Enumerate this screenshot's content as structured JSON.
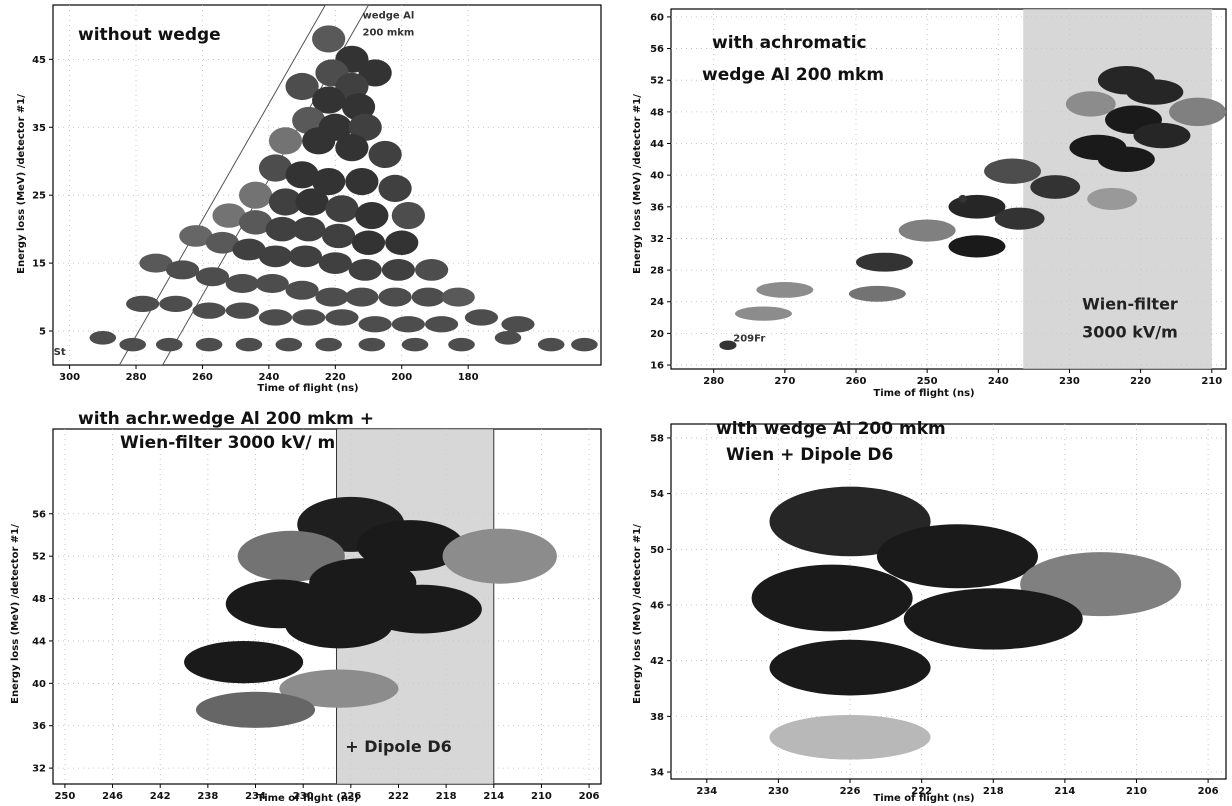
{
  "chart_data": [
    {
      "type": "scatter",
      "title": "without wedge",
      "xlabel": "Time of flight (ns)",
      "ylabel": "Energy loss (MeV) /detector #1/",
      "xlim": [
        305,
        140
      ],
      "ylim": [
        0,
        53
      ],
      "xticks": [
        "300",
        "280",
        "260",
        "240",
        "220",
        "200",
        "180"
      ],
      "xtick_values": [
        300,
        280,
        260,
        240,
        220,
        200,
        180
      ],
      "yticks": [
        "5",
        "15",
        "25",
        "35",
        "45"
      ],
      "ytick_values": [
        5,
        15,
        25,
        35,
        45
      ],
      "annotations": [
        {
          "text": "wedge Al",
          "x": 204,
          "y": 51
        },
        {
          "text": "200 mkm",
          "x": 204,
          "y": 48.5
        },
        {
          "text": "St",
          "x": 303,
          "y": 1.5
        }
      ],
      "band": {
        "type": "diagonal",
        "from": [
          285,
          0
        ],
        "to": [
          223,
          53
        ],
        "width_ns": 13
      },
      "points": [
        [
          222,
          48,
          5,
          2,
          0.35
        ],
        [
          215,
          45,
          5,
          2,
          0.2
        ],
        [
          208,
          43,
          5,
          2,
          0.2
        ],
        [
          221,
          43,
          5,
          2,
          0.3
        ],
        [
          215,
          41,
          5,
          2,
          0.25
        ],
        [
          230,
          41,
          5,
          2,
          0.3
        ],
        [
          222,
          39,
          5,
          2,
          0.2
        ],
        [
          213,
          38,
          5,
          2,
          0.2
        ],
        [
          228,
          36,
          5,
          2,
          0.35
        ],
        [
          220,
          35,
          5,
          2,
          0.2
        ],
        [
          211,
          35,
          5,
          2,
          0.25
        ],
        [
          235,
          33,
          5,
          2,
          0.45
        ],
        [
          225,
          33,
          5,
          2,
          0.2
        ],
        [
          215,
          32,
          5,
          2,
          0.2
        ],
        [
          205,
          31,
          5,
          2,
          0.25
        ],
        [
          238,
          29,
          5,
          2,
          0.3
        ],
        [
          230,
          28,
          5,
          2,
          0.2
        ],
        [
          222,
          27,
          5,
          2,
          0.2
        ],
        [
          212,
          27,
          5,
          2,
          0.2
        ],
        [
          202,
          26,
          5,
          2,
          0.25
        ],
        [
          244,
          25,
          5,
          2,
          0.45
        ],
        [
          235,
          24,
          5,
          2,
          0.25
        ],
        [
          227,
          24,
          5,
          2,
          0.2
        ],
        [
          218,
          23,
          5,
          2,
          0.25
        ],
        [
          209,
          22,
          5,
          2,
          0.2
        ],
        [
          198,
          22,
          5,
          2,
          0.3
        ],
        [
          252,
          22,
          5,
          1.8,
          0.45
        ],
        [
          244,
          21,
          5,
          1.8,
          0.35
        ],
        [
          236,
          20,
          5,
          1.8,
          0.25
        ],
        [
          228,
          20,
          5,
          1.8,
          0.25
        ],
        [
          219,
          19,
          5,
          1.8,
          0.25
        ],
        [
          210,
          18,
          5,
          1.8,
          0.2
        ],
        [
          200,
          18,
          5,
          1.8,
          0.2
        ],
        [
          262,
          19,
          5,
          1.6,
          0.4
        ],
        [
          254,
          18,
          5,
          1.6,
          0.35
        ],
        [
          246,
          17,
          5,
          1.6,
          0.25
        ],
        [
          238,
          16,
          5,
          1.6,
          0.25
        ],
        [
          229,
          16,
          5,
          1.6,
          0.25
        ],
        [
          220,
          15,
          5,
          1.6,
          0.25
        ],
        [
          211,
          14,
          5,
          1.6,
          0.25
        ],
        [
          201,
          14,
          5,
          1.6,
          0.25
        ],
        [
          191,
          14,
          5,
          1.6,
          0.3
        ],
        [
          274,
          15,
          5,
          1.4,
          0.35
        ],
        [
          266,
          14,
          5,
          1.4,
          0.3
        ],
        [
          257,
          13,
          5,
          1.4,
          0.3
        ],
        [
          248,
          12,
          5,
          1.4,
          0.3
        ],
        [
          239,
          12,
          5,
          1.4,
          0.3
        ],
        [
          230,
          11,
          5,
          1.4,
          0.3
        ],
        [
          221,
          10,
          5,
          1.4,
          0.3
        ],
        [
          212,
          10,
          5,
          1.4,
          0.3
        ],
        [
          202,
          10,
          5,
          1.4,
          0.3
        ],
        [
          192,
          10,
          5,
          1.4,
          0.3
        ],
        [
          183,
          10,
          5,
          1.4,
          0.35
        ],
        [
          278,
          9,
          5,
          1.2,
          0.3
        ],
        [
          268,
          9,
          5,
          1.2,
          0.3
        ],
        [
          258,
          8,
          5,
          1.2,
          0.3
        ],
        [
          248,
          8,
          5,
          1.2,
          0.3
        ],
        [
          238,
          7,
          5,
          1.2,
          0.3
        ],
        [
          228,
          7,
          5,
          1.2,
          0.3
        ],
        [
          218,
          7,
          5,
          1.2,
          0.3
        ],
        [
          208,
          6,
          5,
          1.2,
          0.3
        ],
        [
          198,
          6,
          5,
          1.2,
          0.3
        ],
        [
          188,
          6,
          5,
          1.2,
          0.3
        ],
        [
          176,
          7,
          5,
          1.2,
          0.3
        ],
        [
          165,
          6,
          5,
          1.2,
          0.3
        ],
        [
          290,
          4,
          4,
          1.0,
          0.3
        ],
        [
          281,
          3,
          4,
          1.0,
          0.3
        ],
        [
          270,
          3,
          4,
          1.0,
          0.3
        ],
        [
          258,
          3,
          4,
          1.0,
          0.3
        ],
        [
          246,
          3,
          4,
          1.0,
          0.3
        ],
        [
          234,
          3,
          4,
          1.0,
          0.3
        ],
        [
          222,
          3,
          4,
          1.0,
          0.3
        ],
        [
          209,
          3,
          4,
          1.0,
          0.3
        ],
        [
          196,
          3,
          4,
          1.0,
          0.3
        ],
        [
          182,
          3,
          4,
          1.0,
          0.3
        ],
        [
          168,
          4,
          4,
          1.0,
          0.3
        ],
        [
          155,
          3,
          4,
          1.0,
          0.3
        ],
        [
          145,
          3,
          4,
          1.0,
          0.3
        ]
      ]
    },
    {
      "type": "scatter",
      "title": "with achromatic",
      "subtitle": "wedge Al 200 mkm",
      "xlabel": "Time of flight (ns)",
      "ylabel": "Energy loss (MeV) /detector #1/",
      "xlim": [
        286,
        208
      ],
      "ylim": [
        15.5,
        61
      ],
      "xticks": [
        "280",
        "270",
        "260",
        "250",
        "240",
        "230",
        "220",
        "210"
      ],
      "xtick_values": [
        280,
        270,
        260,
        250,
        240,
        230,
        220,
        210
      ],
      "yticks": [
        "16",
        "20",
        "24",
        "28",
        "32",
        "36",
        "40",
        "44",
        "48",
        "52",
        "56",
        "60"
      ],
      "ytick_values": [
        16,
        20,
        24,
        28,
        32,
        36,
        40,
        44,
        48,
        52,
        56,
        60
      ],
      "annotations": [
        {
          "text": "Wien-filter",
          "x": 221.5,
          "y": 23
        },
        {
          "text": "3000 kV/m",
          "x": 221.5,
          "y": 19.5
        },
        {
          "text": "209Fr",
          "x": 275,
          "y": 19
        }
      ],
      "band": {
        "type": "vertical",
        "x0": 236.5,
        "x1": 210
      },
      "points": [
        [
          222,
          52,
          4,
          1.8,
          0.15
        ],
        [
          218,
          50.5,
          4,
          1.6,
          0.15
        ],
        [
          212,
          48,
          4,
          1.8,
          0.5
        ],
        [
          227,
          49,
          3.5,
          1.6,
          0.55
        ],
        [
          221,
          47,
          4,
          1.8,
          0.1
        ],
        [
          217,
          45,
          4,
          1.6,
          0.15
        ],
        [
          226,
          43.5,
          4,
          1.6,
          0.1
        ],
        [
          222,
          42,
          4,
          1.6,
          0.1
        ],
        [
          238,
          40.5,
          4,
          1.6,
          0.3
        ],
        [
          232,
          38.5,
          3.5,
          1.5,
          0.2
        ],
        [
          224,
          37,
          3.5,
          1.4,
          0.6
        ],
        [
          243,
          36,
          4,
          1.5,
          0.15
        ],
        [
          237,
          34.5,
          3.5,
          1.4,
          0.2
        ],
        [
          250,
          33,
          4,
          1.4,
          0.5
        ],
        [
          243,
          31,
          4,
          1.4,
          0.1
        ],
        [
          256,
          29,
          4,
          1.2,
          0.2
        ],
        [
          257,
          25,
          4,
          1.0,
          0.45
        ],
        [
          270,
          25.5,
          4,
          1.0,
          0.55
        ],
        [
          273,
          22.5,
          4,
          0.9,
          0.55
        ],
        [
          245,
          37,
          0.6,
          0.5,
          0.2
        ],
        [
          278,
          18.5,
          1.2,
          0.6,
          0.2
        ]
      ]
    },
    {
      "type": "scatter",
      "title": "with achr.wedge Al 200 mkm +",
      "subtitle": "Wien-filter 3000 kV/ m",
      "xlabel": "Time of flight (ns)",
      "ylabel": "Energy loss (MeV) /detector #1/",
      "xlim": [
        251,
        205
      ],
      "ylim": [
        30.5,
        64
      ],
      "xticks": [
        "250",
        "246",
        "242",
        "238",
        "234",
        "230",
        "226",
        "222",
        "218",
        "214",
        "210",
        "206"
      ],
      "xtick_values": [
        250,
        246,
        242,
        238,
        234,
        230,
        226,
        222,
        218,
        214,
        210,
        206
      ],
      "yticks": [
        "32",
        "36",
        "40",
        "44",
        "48",
        "52",
        "56"
      ],
      "ytick_values": [
        32,
        36,
        40,
        44,
        48,
        52,
        56
      ],
      "annotations": [
        {
          "text": "+ Dipole D6",
          "x": 222,
          "y": 33.5
        }
      ],
      "band": {
        "type": "vertical",
        "x0": 227.2,
        "x1": 214
      },
      "vlines": [
        227.2,
        214
      ],
      "points": [
        [
          226,
          55,
          4.5,
          2.6,
          0.12
        ],
        [
          221,
          53,
          4.5,
          2.4,
          0.1
        ],
        [
          231,
          52,
          4.5,
          2.4,
          0.45
        ],
        [
          213.5,
          52,
          4.8,
          2.6,
          0.55
        ],
        [
          225,
          49.5,
          4.5,
          2.3,
          0.1
        ],
        [
          220,
          47,
          5,
          2.3,
          0.1
        ],
        [
          232,
          47.5,
          4.5,
          2.3,
          0.1
        ],
        [
          227,
          45.5,
          4.5,
          2.2,
          0.1
        ],
        [
          235,
          42,
          5,
          2.0,
          0.1
        ],
        [
          227,
          39.5,
          5,
          1.8,
          0.55
        ],
        [
          234,
          37.5,
          5,
          1.7,
          0.4
        ]
      ]
    },
    {
      "type": "scatter",
      "title": "with wedge Al 200 mkm",
      "subtitle": "Wien + Dipole D6",
      "xlabel": "Time of flight (ns)",
      "ylabel": "Energy loss (MeV) /detector #1/",
      "xlim": [
        236,
        205
      ],
      "ylim": [
        33.5,
        59
      ],
      "xticks": [
        "234",
        "230",
        "226",
        "222",
        "218",
        "214",
        "210",
        "206"
      ],
      "xtick_values": [
        234,
        230,
        226,
        222,
        218,
        214,
        210,
        206
      ],
      "yticks": [
        "34",
        "38",
        "42",
        "46",
        "50",
        "54",
        "58"
      ],
      "ytick_values": [
        34,
        38,
        42,
        46,
        50,
        54,
        58
      ],
      "annotations": [],
      "band": null,
      "points": [
        [
          226,
          52,
          4.5,
          2.5,
          0.15
        ],
        [
          220,
          49.5,
          4.5,
          2.3,
          0.1
        ],
        [
          212,
          47.5,
          4.5,
          2.3,
          0.5
        ],
        [
          227,
          46.5,
          4.5,
          2.4,
          0.1
        ],
        [
          218,
          45,
          5,
          2.2,
          0.1
        ],
        [
          226,
          41.5,
          4.5,
          2.0,
          0.1
        ],
        [
          226,
          36.5,
          4.5,
          1.6,
          0.72
        ]
      ]
    }
  ]
}
